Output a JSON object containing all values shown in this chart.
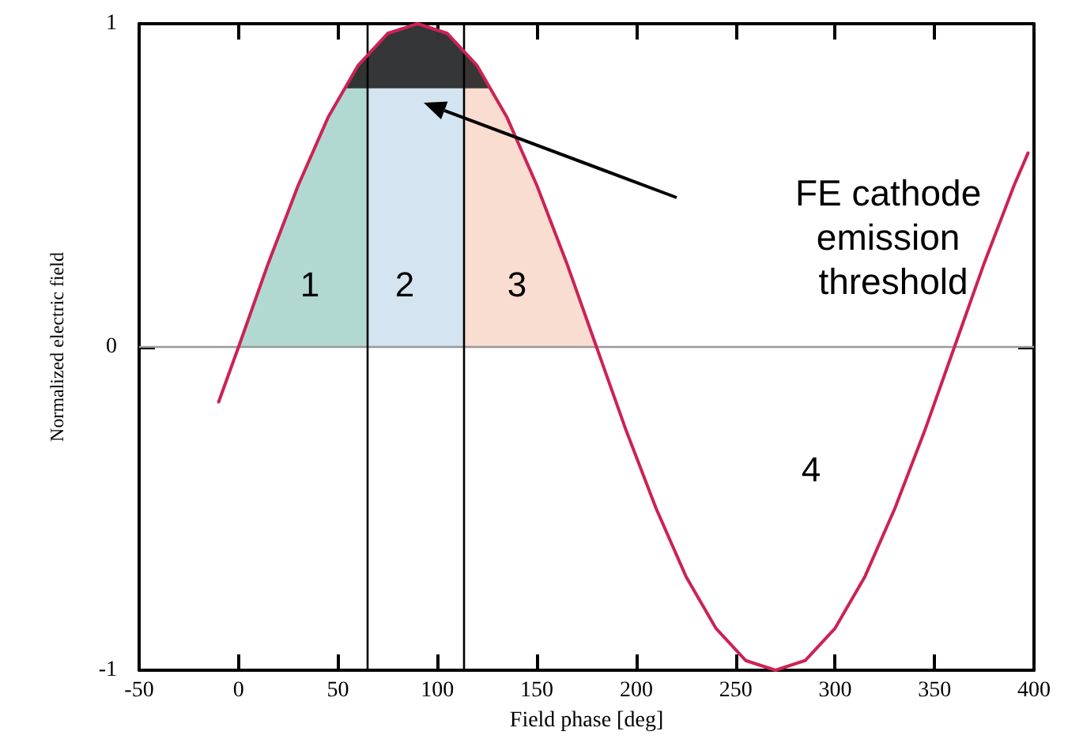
{
  "chart_data": {
    "type": "line",
    "xlabel": "Field phase [deg]",
    "ylabel": "Normalized electric field",
    "xlim": [
      -50,
      400
    ],
    "xticks": [
      -50,
      0,
      50,
      100,
      150,
      200,
      250,
      300,
      350,
      400
    ],
    "ylim": [
      -1,
      1
    ],
    "yticks": [
      -1,
      0,
      1
    ],
    "grid": false,
    "marker": "none",
    "series": [
      {
        "type": "area",
        "color": "#a8d5cc",
        "x": [
          0,
          15,
          30,
          45,
          53,
          60,
          65,
          65
        ],
        "values": [
          0,
          0.26,
          0.5,
          0.71,
          0.8,
          0.87,
          0.91,
          0
        ]
      },
      {
        "type": "area",
        "color": "#cfe2f0",
        "x": [
          65,
          65,
          75,
          90,
          105,
          113,
          113
        ],
        "values": [
          0,
          0.91,
          0.97,
          1,
          0.97,
          0.92,
          0
        ]
      },
      {
        "type": "area",
        "color": "#f8d9cc",
        "x": [
          113,
          113,
          120,
          135,
          150,
          165,
          180
        ],
        "values": [
          0,
          0.92,
          0.87,
          0.71,
          0.5,
          0.26,
          0
        ]
      },
      {
        "type": "area",
        "color": "#222222",
        "x": [
          53,
          60,
          75,
          90,
          105,
          120,
          127
        ],
        "values": [
          0.8,
          0.87,
          0.97,
          1,
          0.97,
          0.87,
          0.8
        ]
      },
      {
        "color": "#cc2255",
        "x": [
          -10,
          0,
          15,
          30,
          45,
          60,
          75,
          90,
          105,
          120,
          135,
          150,
          165,
          180,
          195,
          210,
          225,
          240,
          255,
          270,
          285,
          300,
          315,
          330,
          345,
          360,
          375,
          390,
          397
        ],
        "values": [
          -0.17,
          0,
          0.26,
          0.5,
          0.71,
          0.87,
          0.97,
          1,
          0.97,
          0.87,
          0.71,
          0.5,
          0.26,
          0,
          -0.26,
          -0.5,
          -0.71,
          -0.87,
          -0.97,
          -1,
          -0.97,
          -0.87,
          -0.71,
          -0.5,
          -0.26,
          0,
          0.26,
          0.5,
          0.6
        ]
      }
    ],
    "ref_lines": [
      {
        "axis": "y",
        "value": 0,
        "color": "#999999"
      },
      {
        "axis": "x",
        "value": 65,
        "color": "#000000"
      },
      {
        "axis": "x",
        "value": 113,
        "color": "#000000"
      }
    ],
    "annotations": [
      "1",
      "2",
      "3",
      "4",
      "FE cathode emission threshold"
    ]
  }
}
